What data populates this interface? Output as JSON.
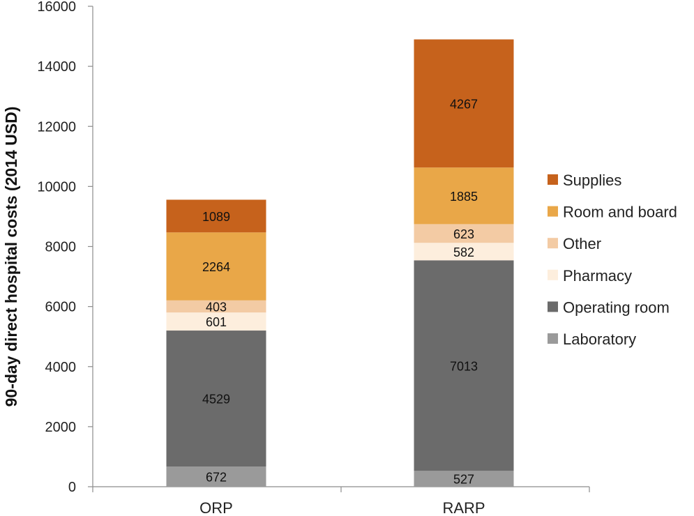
{
  "chart_data": {
    "type": "bar",
    "stacked": true,
    "title": "",
    "xlabel": "",
    "ylabel": "90-day direct hospital costs (2014 USD)",
    "ylim": [
      0,
      16000
    ],
    "yticks": [
      0,
      2000,
      4000,
      6000,
      8000,
      10000,
      12000,
      14000,
      16000
    ],
    "categories": [
      "ORP",
      "RARP"
    ],
    "series": [
      {
        "name": "Laboratory",
        "color": "#9a9a9a",
        "values": [
          672,
          527
        ]
      },
      {
        "name": "Operating room",
        "color": "#6b6b6b",
        "values": [
          4529,
          7013
        ]
      },
      {
        "name": "Pharmacy",
        "color": "#fdeedd",
        "values": [
          601,
          582
        ]
      },
      {
        "name": "Other",
        "color": "#f3cba4",
        "values": [
          403,
          623
        ]
      },
      {
        "name": "Room and board",
        "color": "#e9a748",
        "values": [
          2264,
          1885
        ]
      },
      {
        "name": "Supplies",
        "color": "#c6621c",
        "values": [
          1089,
          4267
        ]
      }
    ],
    "legend_position": "right",
    "legend_order": [
      "Supplies",
      "Room and board",
      "Other",
      "Pharmacy",
      "Operating room",
      "Laboratory"
    ]
  }
}
